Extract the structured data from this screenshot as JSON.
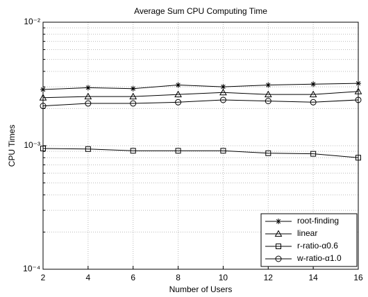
{
  "chart_data": {
    "type": "line",
    "title": "Average Sum CPU Computing Time",
    "x_label": "Number of Users",
    "y_label": "CPU Times",
    "x": [
      2,
      4,
      6,
      8,
      10,
      12,
      14,
      16
    ],
    "xlim": [
      2,
      16
    ],
    "xticks": [
      2,
      4,
      6,
      8,
      10,
      12,
      14,
      16
    ],
    "ylim": [
      0.0001,
      0.01
    ],
    "y_scale": "log",
    "yticks": [
      {
        "value": 0.0001,
        "label": "10⁻⁴"
      },
      {
        "value": 0.001,
        "label": "10⁻³"
      },
      {
        "value": 0.01,
        "label": "10⁻²"
      }
    ],
    "yminorticks": [
      0.0002,
      0.0003,
      0.0004,
      0.0005,
      0.0006,
      0.0007,
      0.0008,
      0.0009,
      0.002,
      0.003,
      0.004,
      0.005,
      0.006,
      0.007,
      0.008,
      0.009
    ],
    "grid": true,
    "legend_position": "lower right",
    "series": [
      {
        "name": "root-finding",
        "color": "#000000",
        "marker": "star",
        "values": [
          0.00285,
          0.00295,
          0.0029,
          0.0031,
          0.003,
          0.0031,
          0.00315,
          0.0032
        ]
      },
      {
        "name": "linear",
        "color": "#000000",
        "marker": "triangle",
        "values": [
          0.00245,
          0.0025,
          0.0025,
          0.0026,
          0.0027,
          0.0026,
          0.0026,
          0.00275
        ]
      },
      {
        "name": "r-ratio-α0.6",
        "color": "#000000",
        "marker": "square",
        "values": [
          0.00095,
          0.00094,
          0.00091,
          0.00091,
          0.00091,
          0.00087,
          0.00086,
          0.0008
        ]
      },
      {
        "name": "w-ratio-α1.0",
        "color": "#000000",
        "marker": "circle",
        "values": [
          0.0021,
          0.0022,
          0.0022,
          0.00225,
          0.00235,
          0.0023,
          0.00225,
          0.00235
        ]
      }
    ]
  }
}
